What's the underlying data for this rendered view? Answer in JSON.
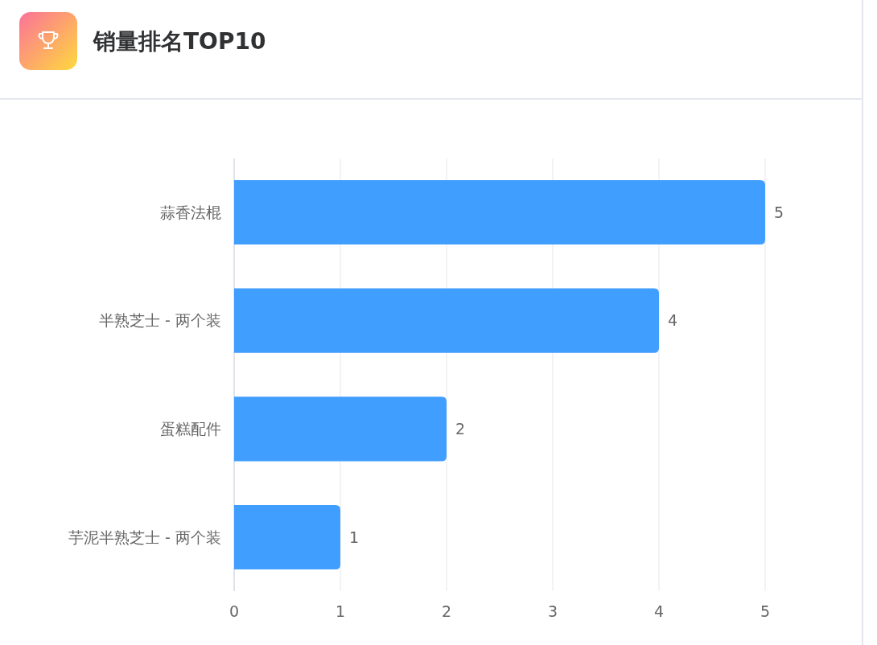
{
  "chart_data": {
    "type": "bar",
    "orientation": "horizontal",
    "title": "销量排名TOP10",
    "categories": [
      "蒜香法棍",
      "半熟芝士 - 两个装",
      "蛋糕配件",
      "芋泥半熟芝士 - 两个装"
    ],
    "values": [
      5,
      4,
      2,
      1
    ],
    "color": "#409eff",
    "xlim": [
      0,
      5
    ],
    "xticks": [
      0,
      1,
      2,
      3,
      4,
      5
    ],
    "grid": "x",
    "data_labels": true
  }
}
